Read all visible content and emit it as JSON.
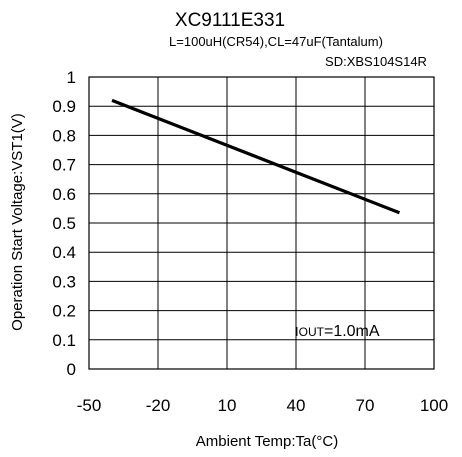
{
  "chart_data": {
    "type": "line",
    "title": "XC9111E331",
    "subtitle": "L=100uH(CR54),CL=47uF(Tantalum)",
    "subtitle2": "SD:XBS104S14R",
    "xlabel": "Ambient Temp:Ta(°C)",
    "ylabel": "Operation Start Voltage:VST1(V)",
    "xlim": [
      -50,
      100
    ],
    "ylim": [
      0,
      1
    ],
    "x_ticks": [
      -50,
      -20,
      10,
      40,
      70,
      100
    ],
    "y_ticks": [
      0,
      0.1,
      0.2,
      0.3,
      0.4,
      0.5,
      0.6,
      0.7,
      0.8,
      0.9,
      1
    ],
    "x_tick_labels": [
      "-50",
      "-20",
      "10",
      "40",
      "70",
      "100"
    ],
    "y_tick_labels": [
      "0",
      "0.1",
      "0.2",
      "0.3",
      "0.4",
      "0.5",
      "0.6",
      "0.7",
      "0.8",
      "0.9",
      "1"
    ],
    "grid": true,
    "annotation": "IOUT=1.0mA",
    "series": [
      {
        "x": [
          -40,
          85
        ],
        "y": [
          0.92,
          0.535
        ],
        "color": "#000000"
      }
    ]
  }
}
